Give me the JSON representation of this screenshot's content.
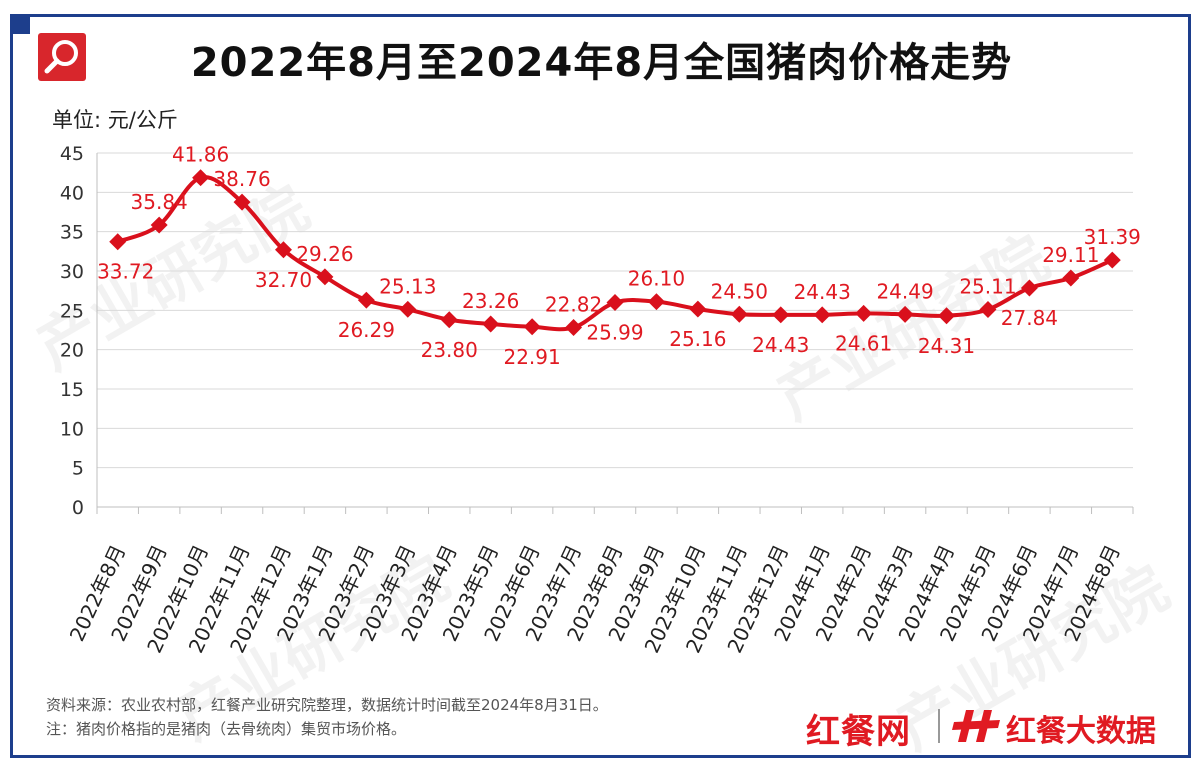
{
  "header": {
    "title": "2022年8月至2024年8月全国猪肉价格走势",
    "unit_label": "单位: 元/公斤"
  },
  "footer": {
    "source": "资料来源：农业农村部，红餐产业研究院整理，数据统计时间截至2024年8月31日。",
    "note": "注：猪肉价格指的是猪肉（去骨统肉）集贸市场价格。"
  },
  "brand": {
    "name1": "红餐网",
    "name2": "红餐大数据",
    "watermark": "产业研究院"
  },
  "colors": {
    "frame": "#1d3e8c",
    "series": "#d9101c",
    "label": "#e01a22",
    "grid": "#d9d9d9"
  },
  "chart_data": {
    "type": "line",
    "title": "2022年8月至2024年8月全国猪肉价格走势",
    "ylabel": "单位: 元/公斤",
    "ylim": [
      0,
      45
    ],
    "yticks": [
      0,
      5,
      10,
      15,
      20,
      25,
      30,
      35,
      40,
      45
    ],
    "grid": true,
    "categories": [
      "2022年8月",
      "2022年9月",
      "2022年10月",
      "2022年11月",
      "2022年12月",
      "2023年1月",
      "2023年2月",
      "2023年3月",
      "2023年4月",
      "2023年5月",
      "2023年6月",
      "2023年7月",
      "2023年8月",
      "2023年9月",
      "2023年10月",
      "2023年11月",
      "2023年12月",
      "2024年1月",
      "2024年2月",
      "2024年3月",
      "2024年4月",
      "2024年5月",
      "2024年6月",
      "2024年7月",
      "2024年8月"
    ],
    "values": [
      33.72,
      35.84,
      41.86,
      38.76,
      32.7,
      29.26,
      26.29,
      25.13,
      23.8,
      23.26,
      22.91,
      22.82,
      25.99,
      26.1,
      25.16,
      24.5,
      24.43,
      24.43,
      24.61,
      24.49,
      24.31,
      25.11,
      27.84,
      29.11,
      31.39
    ],
    "label_position": [
      "below",
      "above",
      "above",
      "above",
      "below",
      "above",
      "below",
      "above",
      "below",
      "above",
      "below",
      "above",
      "below",
      "above",
      "below",
      "above",
      "below",
      "above",
      "below",
      "above",
      "below",
      "above",
      "below",
      "above",
      "above"
    ]
  }
}
